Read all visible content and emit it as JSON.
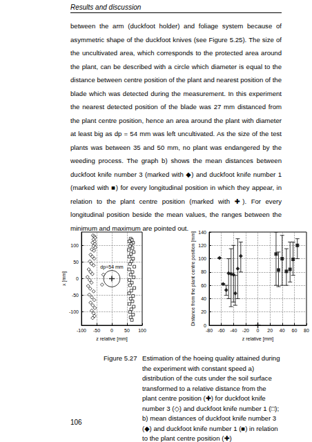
{
  "header": "Results and discussion",
  "paragraph": "between the arm (duckfoot holder) and foliage system because of asymmetric shape of the duckfoot knives (see Figure 5.25). The size of the uncultivated area, which corresponds to the protected area around the plant, can be described with a circle which diameter is equal to the distance between centre position of the plant and nearest position of the blade which was detected during the measurement. In this experiment the nearest detected position of the blade was 27 mm distanced from the plant centre position, hence an area around the plant with diameter at least big as dp = 54 mm was left uncultivated. As the size of the test plants was between 35 and 50 mm, no plant was endangered by the weeding process. The graph b) shows the mean distances between duckfoot knife number 3 (marked with ◆) and duckfoot knife number 1 (marked with ■) for every longitudinal position in which they appear, in relation to the plant centre position (marked with ✚). For every longitudinal position beside the mean values, the ranges between the minimum and maximum are pointed out.",
  "chart_data": [
    {
      "type": "scatter",
      "xlabel": "z relative [mm]",
      "ylabel": "x [mm]",
      "xlim": [
        -100,
        100
      ],
      "xticks": [
        -100,
        -50,
        0,
        50,
        100
      ],
      "ylim": [
        -140,
        140
      ],
      "yticks": [
        -100,
        -50,
        0,
        50,
        100
      ],
      "grid": true,
      "series": [
        {
          "marker": "diamond_open",
          "color": "#000000",
          "x": [
            -62,
            -58,
            -55,
            -60,
            -57,
            -63,
            -56,
            -60,
            -54,
            -66,
            -59,
            -70,
            -64,
            -58,
            -72,
            -67,
            -60,
            -76,
            -70,
            -64,
            -80,
            -73,
            -67,
            -78,
            -71,
            -60,
            -74,
            -66,
            -58,
            -70,
            -63,
            -56,
            -66,
            -60,
            -57,
            -63,
            -28,
            -32
          ],
          "values": [
            130,
            127,
            123,
            118,
            112,
            108,
            104,
            98,
            94,
            88,
            84,
            72,
            66,
            60,
            52,
            45,
            40,
            28,
            20,
            14,
            5,
            -4,
            -12,
            -22,
            -30,
            -38,
            -48,
            -56,
            -64,
            -72,
            -80,
            -88,
            -96,
            -104,
            -112,
            -118,
            12,
            -18
          ]
        },
        {
          "marker": "square_open",
          "color": "#000000",
          "x": [
            62,
            66,
            58,
            70,
            64,
            60,
            68,
            56,
            72,
            63,
            58,
            70,
            65,
            60,
            74,
            57,
            68,
            62,
            72,
            58,
            66,
            60,
            74,
            64,
            57,
            70,
            62,
            68,
            58,
            72,
            64,
            60,
            70,
            62,
            66
          ],
          "values": [
            120,
            116,
            112,
            108,
            104,
            98,
            92,
            86,
            80,
            74,
            66,
            60,
            52,
            44,
            36,
            28,
            20,
            12,
            4,
            -4,
            -12,
            -20,
            -28,
            -36,
            -44,
            -52,
            -60,
            -68,
            -76,
            -84,
            -92,
            -100,
            -108,
            -116,
            -124
          ]
        },
        {
          "marker": "plus",
          "color": "#000000",
          "x": [
            0
          ],
          "values": [
            0
          ]
        }
      ],
      "circle": {
        "center": [
          0,
          0
        ],
        "diameter": 54,
        "label": "dp=54 mm"
      }
    },
    {
      "type": "scatter",
      "xlabel": "z relative [mm]",
      "ylabel": "Distance from the plant centre position [mm]",
      "xlim": [
        -80,
        80
      ],
      "xticks": [
        -80,
        -60,
        -40,
        -20,
        0,
        20,
        40,
        60,
        80
      ],
      "ylim": [
        0,
        140
      ],
      "yticks": [
        0,
        20,
        40,
        60,
        80,
        100,
        120,
        140
      ],
      "grid": true,
      "series": [
        {
          "marker": "diamond",
          "color": "#000000",
          "x": [
            -63,
            -57,
            -52,
            -48,
            -44,
            -40,
            -37,
            -33,
            -28
          ],
          "values": [
            101,
            62,
            53,
            78,
            77,
            76,
            48,
            85,
            104
          ],
          "min": [
            101,
            62,
            45,
            40,
            28,
            35,
            30,
            40,
            80
          ],
          "max": [
            101,
            62,
            60,
            100,
            115,
            120,
            75,
            130,
            125
          ]
        },
        {
          "marker": "square",
          "color": "#000000",
          "x": [
            30,
            34,
            40,
            47,
            53,
            58,
            65
          ],
          "values": [
            107,
            83,
            100,
            81,
            84,
            99,
            120
          ],
          "min": [
            60,
            58,
            60,
            60,
            65,
            75,
            100
          ],
          "max": [
            140,
            110,
            135,
            115,
            125,
            125,
            130
          ]
        },
        {
          "marker": "plus",
          "color": "#000000",
          "x": [
            0
          ],
          "values": [
            0
          ]
        }
      ]
    }
  ],
  "caption": {
    "label": "Figure 5.27",
    "text": "Estimation of the hoeing quality attained during the experiment with constant speed a) distribution of the cuts under the soil surface transformed to a relative distance from the plant centre position (✚) for duckfoot knife number 3 (◇) and duckfoot knife number 1 (□); b) mean distances of duckfoot knife number 3 (◆) and duckfoot knife number 1 (■) in relation to the plant centre position (✚)"
  },
  "page_number": "106"
}
